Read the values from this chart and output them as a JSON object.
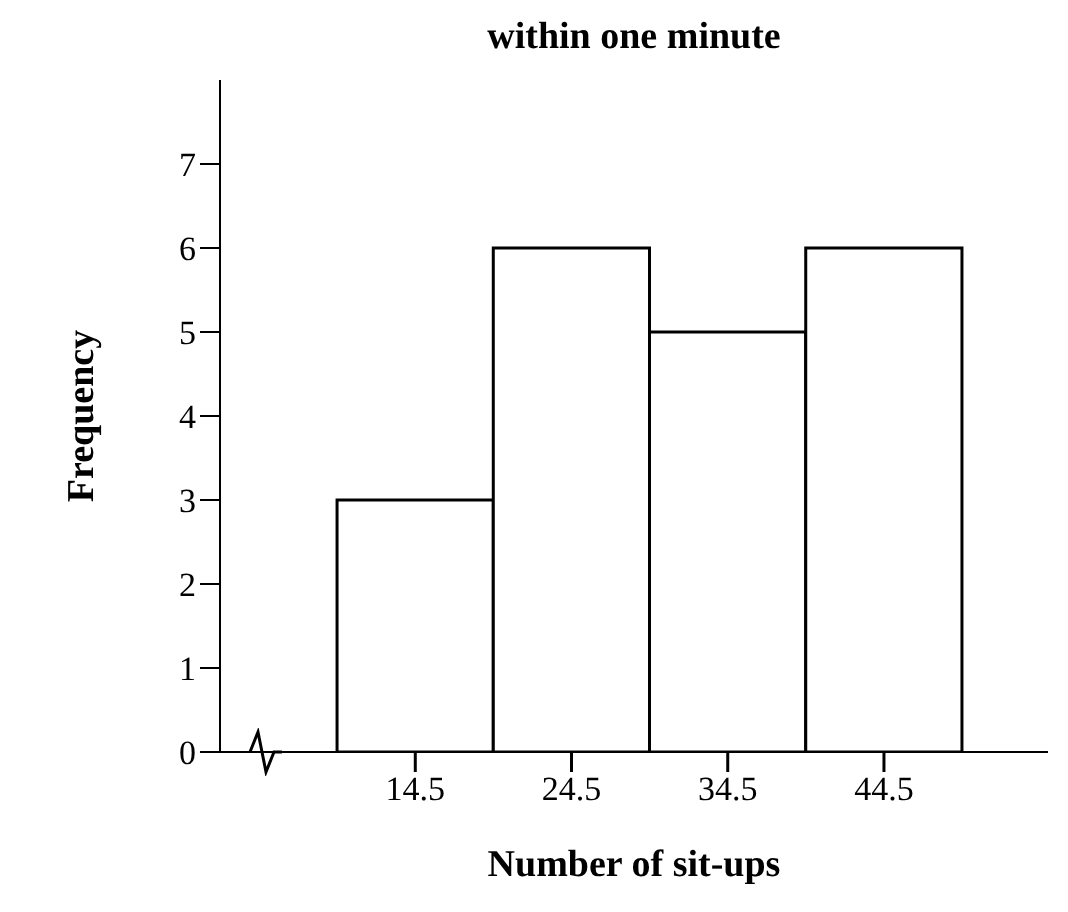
{
  "chart_data": {
    "type": "histogram",
    "title": "within one minute",
    "xlabel": "Number of sit-ups",
    "ylabel": "Frequency",
    "bins": [
      9.5,
      19.5,
      29.5,
      39.5,
      49.5
    ],
    "values": [
      3,
      6,
      5,
      6
    ],
    "color": "#ffffff",
    "xlim": [
      2,
      55
    ],
    "xticks": [
      14.5,
      24.5,
      34.5,
      44.5
    ],
    "ylim": [
      0,
      8
    ],
    "yticks": [
      0,
      1,
      2,
      3,
      4,
      5,
      6,
      7
    ],
    "grid": false
  }
}
